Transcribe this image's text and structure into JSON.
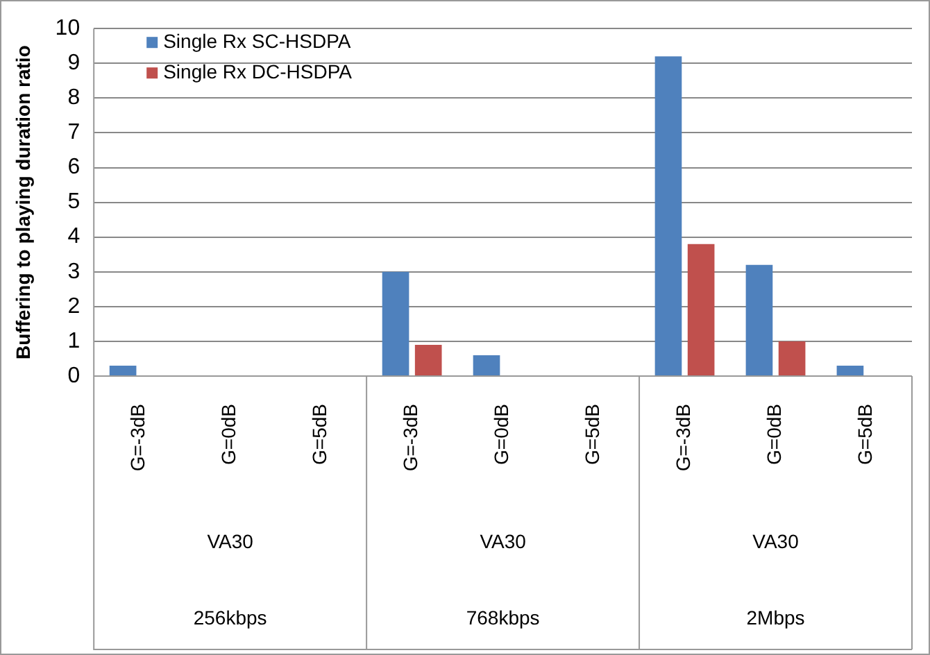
{
  "chart_data": {
    "type": "bar",
    "ylabel": "Buffering to playing duration ratio",
    "categories": [
      "G=-3dB",
      "G=0dB",
      "G=5dB",
      "G=-3dB",
      "G=0dB",
      "G=5dB",
      "G=-3dB",
      "G=0dB",
      "G=5dB"
    ],
    "series": [
      {
        "name": "Single Rx SC-HSDPA",
        "color": "#4f81bd",
        "values": [
          0.3,
          0,
          0,
          3.0,
          0.6,
          0,
          9.2,
          3.2,
          0.3
        ]
      },
      {
        "name": "Single Rx DC-HSDPA",
        "color": "#c0504d",
        "values": [
          0,
          0,
          0,
          0.9,
          0,
          0,
          3.8,
          1.0,
          0
        ]
      }
    ],
    "ylim": [
      0,
      10
    ],
    "yticks": [
      0,
      1,
      2,
      3,
      4,
      5,
      6,
      7,
      8,
      9,
      10
    ],
    "grid": "y",
    "legend": "top left",
    "annotations": [
      "VA30",
      "VA30",
      "VA30",
      "256kbps",
      "768kbps",
      "2Mbps"
    ]
  }
}
